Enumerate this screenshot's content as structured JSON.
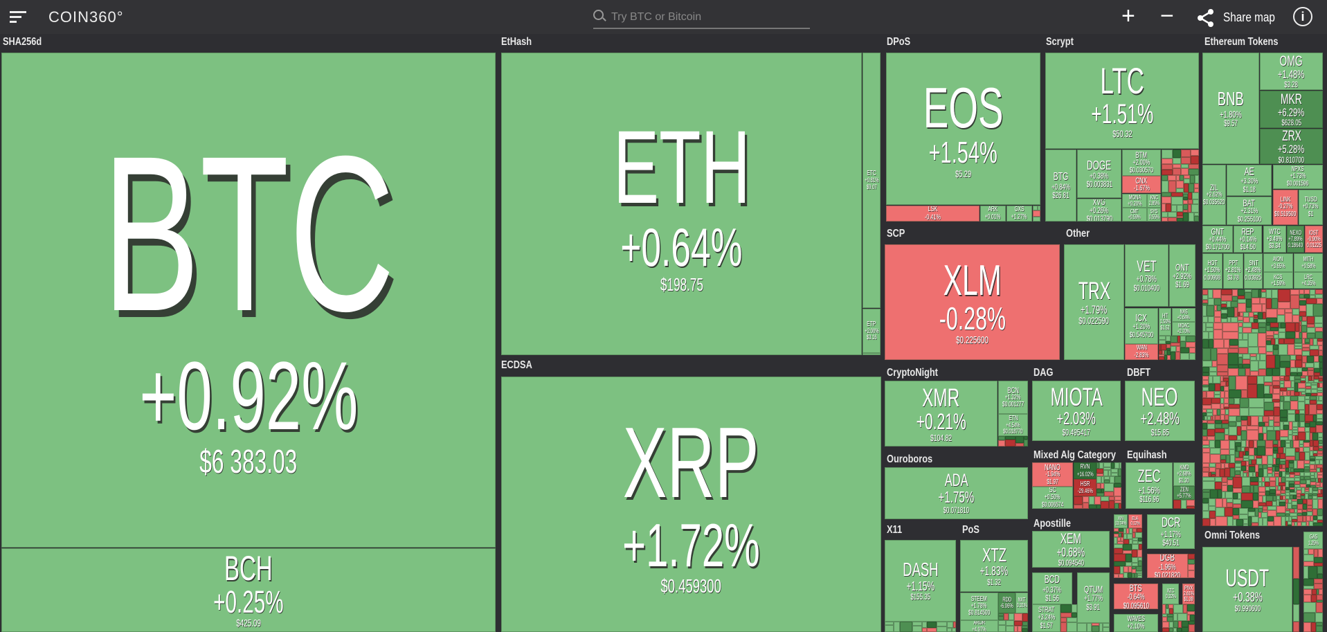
{
  "header": {
    "logo": "COIN360°",
    "search_placeholder": "Try BTC or Bitcoin",
    "zoom_in": "+",
    "zoom_out": "−",
    "share_label": "Share map",
    "info": "i"
  },
  "colors": {
    "up": "#7dc181",
    "down": "#ee7070",
    "strong_up": "#4e8f52",
    "very_strong_up": "#2f6e36",
    "strong_down": "#b83232",
    "background": "#2e2e32"
  },
  "groups": [
    "SHA256d",
    "EtHash",
    "ECDSA",
    "DPoS",
    "Scrypt",
    "Ethereum Tokens",
    "SCP",
    "Other",
    "CryptoNight",
    "DAG",
    "DBFT",
    "Ouroboros",
    "Mixed Alg Category",
    "Equihash",
    "X11",
    "PoS",
    "Apostille",
    "Omni Tokens"
  ],
  "coins": {
    "BTC": {
      "sym": "BTC",
      "pct": "+0.92%",
      "price": "$6 383.03"
    },
    "BCH": {
      "sym": "BCH",
      "pct": "+0.25%",
      "price": "$425.09"
    },
    "ETH": {
      "sym": "ETH",
      "pct": "+0.64%",
      "price": "$198.75"
    },
    "ETC": {
      "sym": "ETC",
      "pct": "+0.81%",
      "price": "$9.07"
    },
    "ETP": {
      "sym": "ETP",
      "pct": "+2.00%",
      "price": "$3.16"
    },
    "XRP": {
      "sym": "XRP",
      "pct": "+1.72%",
      "price": "$0.459300"
    },
    "EOS": {
      "sym": "EOS",
      "pct": "+1.54%",
      "price": "$5.29"
    },
    "LSK": {
      "sym": "LSK",
      "pct": "-0.41%"
    },
    "ARK": {
      "sym": "ARK",
      "pct": "+0.01%"
    },
    "GXS": {
      "sym": "GXS",
      "pct": "+1.27%"
    },
    "LTC": {
      "sym": "LTC",
      "pct": "+1.51%",
      "price": "$50.32"
    },
    "BTG": {
      "sym": "BTG",
      "pct": "+0.84%",
      "price": "$26.81"
    },
    "DOGE": {
      "sym": "DOGE",
      "pct": "+0.38%",
      "price": "$0.003831"
    },
    "XVG": {
      "sym": "XVG",
      "pct": "+0.26%",
      "price": "$0.013790"
    },
    "BTM": {
      "sym": "BTM",
      "pct": "+2.00%",
      "price": "$0.030570"
    },
    "CNX": {
      "sym": "CNX",
      "pct": "-1.67%"
    },
    "MONA": {
      "sym": "MONA",
      "pct": "+0.20%"
    },
    "KNC": {
      "sym": "KNC",
      "pct": "2.85%"
    },
    "CMT": {
      "sym": "CMT",
      "pct": "+0.59%"
    },
    "SYS": {
      "sym": "SYS",
      "pct": "0.55%"
    },
    "XLM": {
      "sym": "XLM",
      "pct": "-0.28%",
      "price": "$0.225600"
    },
    "TRX": {
      "sym": "TRX",
      "pct": "+1.79%",
      "price": "$0.022590"
    },
    "VET": {
      "sym": "VET",
      "pct": "+0.78%",
      "price": "$0.010400"
    },
    "ONT": {
      "sym": "ONT",
      "pct": "+2.92%",
      "price": "$1.69"
    },
    "ICX": {
      "sym": "ICX",
      "pct": "+1.20%",
      "price": "$0.545700"
    },
    "WAN": {
      "sym": "WAN",
      "pct": "-2.83%"
    },
    "HT": {
      "sym": "HT",
      "pct": "1.50%",
      "price": "$1.52"
    },
    "NAS": {
      "sym": "NAS",
      "pct": "+0.64%"
    },
    "MOAC": {
      "sym": "MOAC",
      "pct": "+2.70%"
    },
    "XMR": {
      "sym": "XMR",
      "pct": "+0.21%",
      "price": "$104.82"
    },
    "BCN": {
      "sym": "BCN",
      "pct": "+1.32%",
      "price": "$0.001277"
    },
    "ETN": {
      "sym": "ETN",
      "pct": "+4.54%",
      "price": "$0.018770"
    },
    "MIOTA": {
      "sym": "MIOTA",
      "pct": "+2.03%",
      "price": "$0.495417"
    },
    "NEO": {
      "sym": "NEO",
      "pct": "+2.48%",
      "price": "$15.85"
    },
    "ADA": {
      "sym": "ADA",
      "pct": "+1.75%",
      "price": "$0.071810"
    },
    "DASH": {
      "sym": "DASH",
      "pct": "+1.15%",
      "price": "$155.35"
    },
    "XTZ": {
      "sym": "XTZ",
      "pct": "+1.83%",
      "price": "$1.32"
    },
    "STEEM": {
      "sym": "STEEM",
      "pct": "+1.78%",
      "price": "$0.814500"
    },
    "RDD": {
      "sym": "RDD",
      "pct": "-6.06%"
    },
    "NXT": {
      "sym": "NXT",
      "pct": "0.31%"
    },
    "ARDR": {
      "sym": "ARDR",
      "pct": "+4.97%"
    },
    "NANO": {
      "sym": "NANO",
      "pct": "-1.94%",
      "price": "$1.97"
    },
    "SC": {
      "sym": "SC",
      "pct": "+0.50%",
      "price": "$0.006574"
    },
    "RVN": {
      "sym": "RVN",
      "pct": "+16.02%"
    },
    "HSR": {
      "sym": "HSR",
      "pct": "-29.46%"
    },
    "ZEC": {
      "sym": "ZEC",
      "pct": "+1.56%",
      "price": "$116.96"
    },
    "KMD": {
      "sym": "KMD",
      "pct": "+2.68%",
      "price": "$1.30"
    },
    "ZEN": {
      "sym": "ZEN",
      "pct": "+5.77%"
    },
    "XEM": {
      "sym": "XEM",
      "pct": "+0.68%",
      "price": "$0.094540"
    },
    "BCD": {
      "sym": "BCD",
      "pct": "+0.37%",
      "price": "$1.56"
    },
    "STRAT": {
      "sym": "STRAT",
      "pct": "+3.24%",
      "price": "$1.57"
    },
    "QTUM": {
      "sym": "QTUM",
      "pct": "+1.77%",
      "price": "$3.91"
    },
    "XIN": {
      "sym": "XIN",
      "pct": "13.74%"
    },
    "ELA": {
      "sym": "ELA",
      "pct": "0.12%"
    },
    "DCR": {
      "sym": "DCR",
      "pct": "+1.17%",
      "price": "$40.51"
    },
    "DGB": {
      "sym": "DGB",
      "pct": "-1.96%",
      "price": "$0.021820"
    },
    "BTS": {
      "sym": "BTS",
      "pct": "-0.64%",
      "price": "$0.095610"
    },
    "XZC": {
      "sym": "XZC",
      "pct": "0.32%"
    },
    "PIVX": {
      "sym": "PIVX",
      "pct": "2.61%",
      "price": "$1.39"
    },
    "WAVES": {
      "sym": "WAVES",
      "pct": "+2.10%"
    },
    "BNB": {
      "sym": "BNB",
      "pct": "+1.80%",
      "price": "$9.57"
    },
    "OMG": {
      "sym": "OMG",
      "pct": "+1.48%",
      "price": "$3.28"
    },
    "MKR": {
      "sym": "MKR",
      "pct": "+6.29%",
      "price": "$628.05"
    },
    "ZRX": {
      "sym": "ZRX",
      "pct": "+5.28%",
      "price": "$0.810700"
    },
    "ZIL": {
      "sym": "ZIL",
      "pct": "+2.62%",
      "price": "$0.035620"
    },
    "AE": {
      "sym": "AE",
      "pct": "+3.30%",
      "price": "$1.18"
    },
    "BAT": {
      "sym": "BAT",
      "pct": "+2.31%",
      "price": "$0.255100"
    },
    "NPXS": {
      "sym": "NPXS",
      "pct": "+1.73%",
      "price": "$0.001596"
    },
    "LINK": {
      "sym": "LINK",
      "pct": "-0.27%",
      "price": "$0.519500"
    },
    "TUSD": {
      "sym": "TUSD",
      "pct": "+0.73%",
      "price": "$1"
    },
    "GNT": {
      "sym": "GNT",
      "pct": "+0.44%",
      "price": "$0.171700"
    },
    "REP": {
      "sym": "REP",
      "pct": "+0.14%",
      "price": "$14.50"
    },
    "WTC": {
      "sym": "WTC",
      "pct": "+3.49%",
      "price": "$3.34"
    },
    "NEXO": {
      "sym": "NEXO",
      "pct": "+7.89%",
      "price": "0.18640"
    },
    "IOST": {
      "sym": "IOST",
      "pct": "-0.90%",
      "price": "0.01225"
    },
    "HOT": {
      "sym": "HOT",
      "pct": "+1.50%",
      "price": "0.00908"
    },
    "PPT": {
      "sym": "PPT",
      "pct": "+2.81%",
      "price": "$3.78"
    },
    "SNT": {
      "sym": "SNT",
      "pct": "+2.48%",
      "price": "0.03925"
    },
    "AION": {
      "sym": "AION",
      "pct": "+3.65%"
    },
    "MITH": {
      "sym": "MITH",
      "pct": "+0.58%"
    },
    "KCS": {
      "sym": "KCS",
      "pct": "+1.59%"
    },
    "LRC": {
      "sym": "LRC",
      "pct": "+4.35%"
    },
    "USDT": {
      "sym": "USDT",
      "pct": "+0.38%",
      "price": "$0.990600"
    },
    "GAS": {
      "sym": "GAS",
      "pct": "1.25%"
    }
  }
}
